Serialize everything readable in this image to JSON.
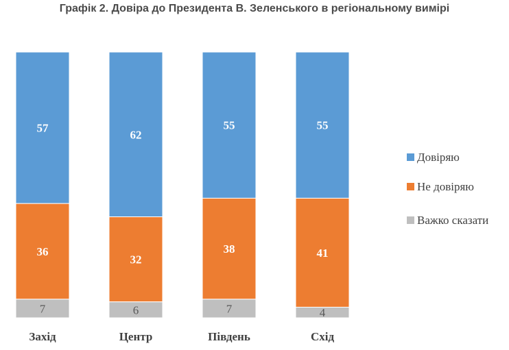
{
  "chart_data": {
    "type": "bar",
    "stacked": true,
    "title": "Графік 2. Довіра до Президента В. Зеленського в регіональному вимірі",
    "categories": [
      "Захід",
      "Центр",
      "Південь",
      "Схід"
    ],
    "series": [
      {
        "name": "Довіряю",
        "color": "#5b9bd5",
        "values": [
          57,
          62,
          55,
          55
        ]
      },
      {
        "name": "Не довіряю",
        "color": "#ed7d31",
        "values": [
          36,
          32,
          38,
          41
        ]
      },
      {
        "name": "Важко сказати",
        "color": "#bfbfbf",
        "values": [
          7,
          6,
          7,
          4
        ]
      }
    ],
    "ylim": [
      0,
      100
    ],
    "grid": false,
    "legend_position": "right"
  }
}
